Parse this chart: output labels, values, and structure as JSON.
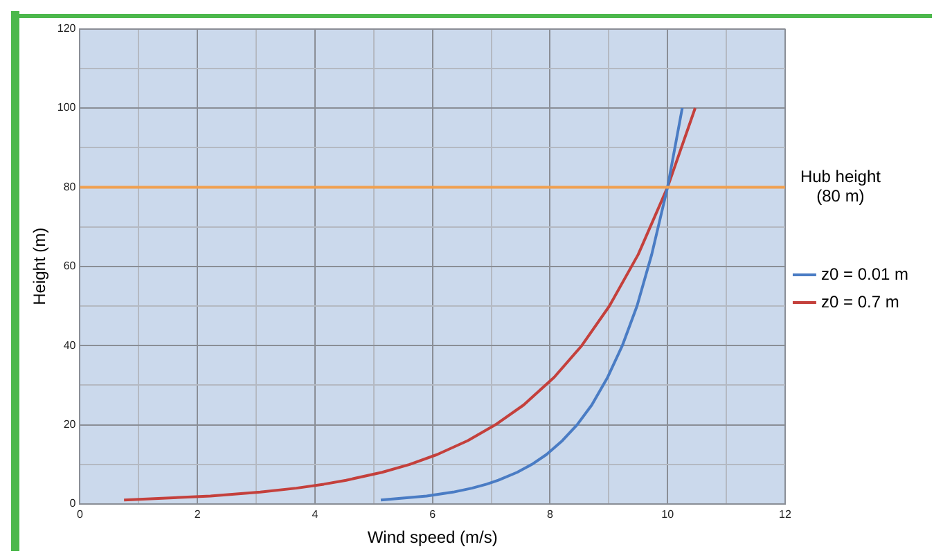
{
  "chart_data": {
    "type": "line",
    "xlabel": "Wind speed (m/s)",
    "ylabel": "Height (m)",
    "xlim": [
      0,
      12
    ],
    "xticks": [
      0,
      {
        "value": 1,
        "label": null
      },
      2,
      {
        "value": 3,
        "label": null
      },
      4,
      {
        "value": 5,
        "label": null
      },
      6,
      {
        "value": 7,
        "label": null
      },
      8,
      {
        "value": 9,
        "label": null
      },
      10,
      {
        "value": 11,
        "label": null
      },
      12
    ],
    "ylim": [
      0,
      120
    ],
    "yticks": [
      0,
      {
        "value": 10,
        "label": null
      },
      20,
      {
        "value": 30,
        "label": null
      },
      40,
      {
        "value": 50,
        "label": null
      },
      60,
      {
        "value": 70,
        "label": null
      },
      80,
      {
        "value": 90,
        "label": null
      },
      100,
      {
        "value": 110,
        "label": null
      },
      120
    ],
    "grid": true,
    "legend": "right",
    "marker": "none",
    "line_style": "solid",
    "series": [
      {
        "name": "z0 = 0.01 m",
        "color": "#4a7cc4",
        "x": [
          5.12,
          5.9,
          6.35,
          6.67,
          6.92,
          7.12,
          7.44,
          7.69,
          7.94,
          8.21,
          8.46,
          8.71,
          8.98,
          9.23,
          9.48,
          9.73,
          10,
          10.25
        ],
        "values": [
          1,
          2,
          3,
          4,
          5,
          6,
          8,
          10,
          12.5,
          16,
          20,
          25,
          32,
          40,
          50,
          63,
          80,
          100
        ]
      },
      {
        "name": "z0 = 0.7 m",
        "color": "#c4403c",
        "x": [
          0.75,
          2.22,
          3.07,
          3.68,
          4.15,
          4.53,
          5.14,
          5.61,
          6.08,
          6.6,
          7.07,
          7.55,
          8.07,
          8.54,
          9.01,
          9.5,
          10,
          10.47
        ],
        "values": [
          1,
          2,
          3,
          4,
          5,
          6,
          8,
          10,
          12.5,
          16,
          20,
          25,
          32,
          40,
          50,
          63,
          80,
          100
        ]
      }
    ],
    "ref_lines": [
      {
        "axis": "y",
        "value": 80,
        "label": "Hub height (80 m)",
        "color": "#f0a050"
      }
    ]
  }
}
